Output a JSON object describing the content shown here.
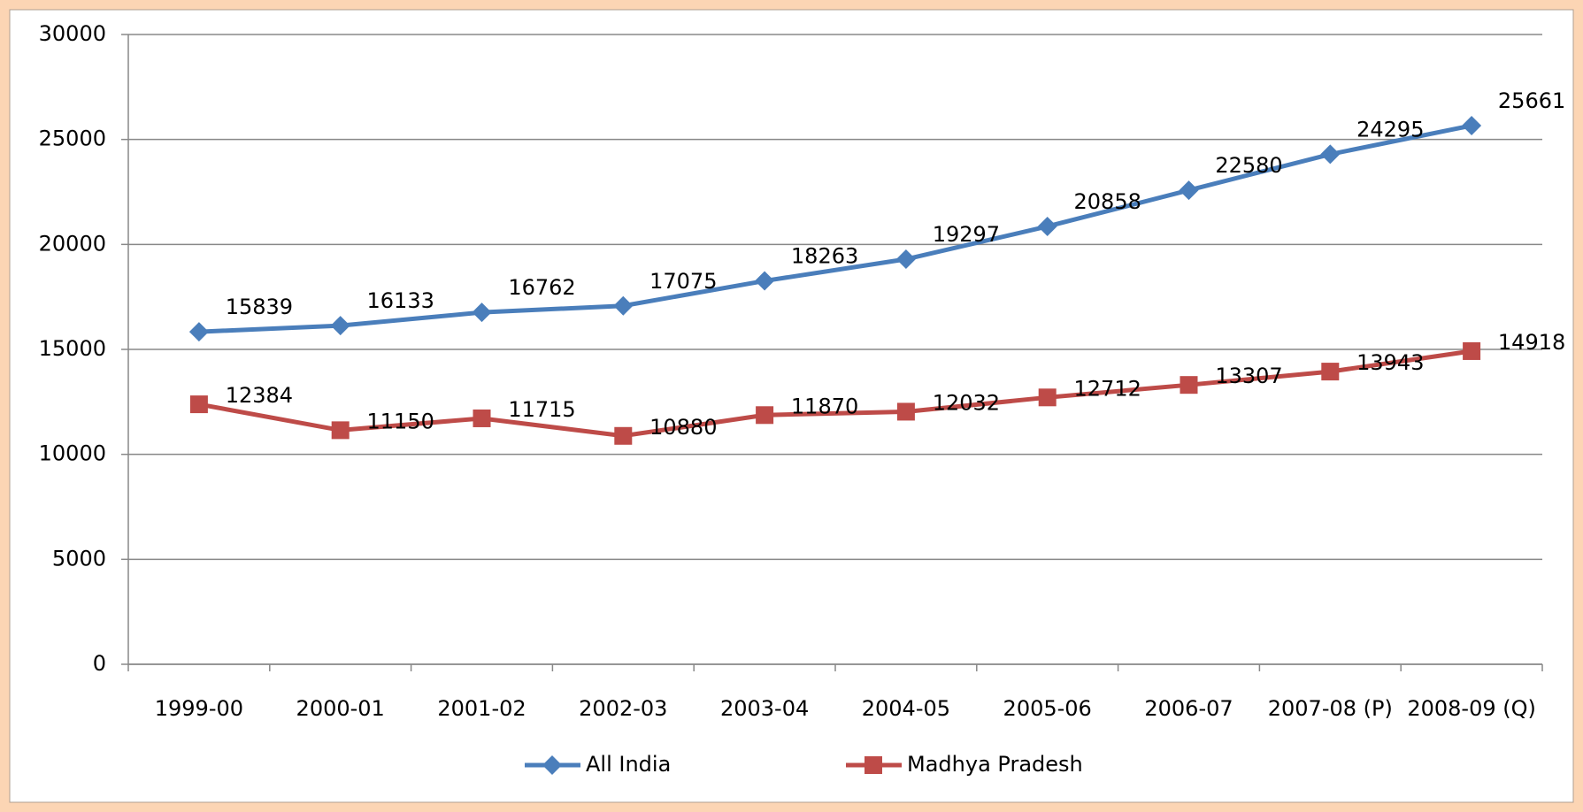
{
  "chart_data": {
    "type": "line",
    "categories": [
      "1999-00",
      "2000-01",
      "2001-02",
      "2002-03",
      "2003-04",
      "2004-05",
      "2005-06",
      "2006-07",
      "2007-08 (P)",
      "2008-09 (Q)"
    ],
    "series": [
      {
        "name": "All India",
        "color": "#4a7ebb",
        "marker": "diamond",
        "values": [
          15839,
          16133,
          16762,
          17075,
          18263,
          19297,
          20858,
          22580,
          24295,
          25661
        ]
      },
      {
        "name": "Madhya Pradesh",
        "color": "#be4b48",
        "marker": "square",
        "values": [
          12384,
          11150,
          11715,
          10880,
          11870,
          12032,
          12712,
          13307,
          13943,
          14918
        ]
      }
    ],
    "ylim": [
      0,
      30000
    ],
    "yticks": [
      0,
      5000,
      10000,
      15000,
      20000,
      25000,
      30000
    ],
    "grid": true,
    "legend": "bottom"
  }
}
